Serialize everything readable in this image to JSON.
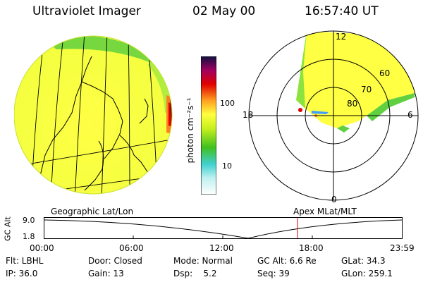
{
  "header": {
    "title": "Ultraviolet Imager",
    "date": "02 May 00",
    "time": "16:57:40 UT"
  },
  "colorbar": {
    "unit_label": "photon cm⁻²s⁻¹",
    "ticks": [
      "100",
      "10"
    ],
    "scale": "log",
    "colors": [
      "#ffffff",
      "#40d0d0",
      "#40c020",
      "#c8f020",
      "#ffff40",
      "#ffa020",
      "#e00000",
      "#a00060",
      "#101040"
    ]
  },
  "polar_plot": {
    "mlt_labels": {
      "top": "12",
      "left": "18",
      "right": "6",
      "bottom": "0"
    },
    "lat_labels": [
      "60",
      "70",
      "80"
    ]
  },
  "timeline": {
    "left_label": "Geographic Lat/Lon",
    "right_label": "Apex MLat/MLT",
    "axis_label": "GC Alt",
    "y_ticks": [
      "9.0",
      "1.8"
    ],
    "x_ticks": [
      "00:00",
      "06:00",
      "12:00",
      "18:00",
      "23:59"
    ],
    "marker_time": "16:57:40",
    "line_color": "#e00000"
  },
  "info": {
    "filter": "Flt: LBHL",
    "door": "Door: Closed",
    "mode": "Mode: Normal",
    "gc_alt": "GC Alt: 6.6 Re",
    "glat": "GLat:  34.3",
    "ip": "IP: 36.0",
    "gain": "Gain: 13",
    "dsp": "Dsp:    5.2",
    "seq": "Seq: 39",
    "glon": "GLon: 259.1"
  }
}
